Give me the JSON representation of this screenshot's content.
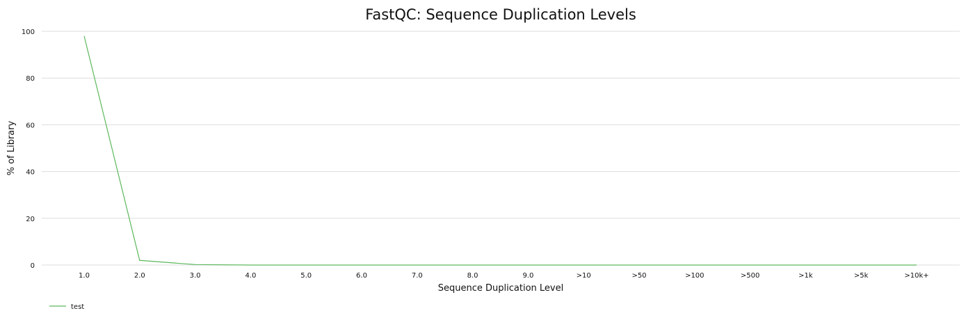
{
  "chart_data": {
    "type": "line",
    "title": "FastQC: Sequence Duplication Levels",
    "xlabel": "Sequence Duplication Level",
    "ylabel": "% of Library",
    "categories": [
      "1.0",
      "2.0",
      "3.0",
      "4.0",
      "5.0",
      "6.0",
      "7.0",
      "8.0",
      "9.0",
      ">10",
      ">50",
      ">100",
      ">500",
      ">1k",
      ">5k",
      ">10k+"
    ],
    "ylim": [
      0,
      100
    ],
    "yticks": [
      0,
      20,
      40,
      60,
      80,
      100
    ],
    "grid": true,
    "legend_position": "bottom-left",
    "series": [
      {
        "name": "test",
        "color": "#5cb85c",
        "values": [
          98,
          2,
          0.2,
          0,
          0,
          0,
          0,
          0,
          0,
          0,
          0,
          0,
          0,
          0,
          0,
          0
        ]
      }
    ]
  }
}
